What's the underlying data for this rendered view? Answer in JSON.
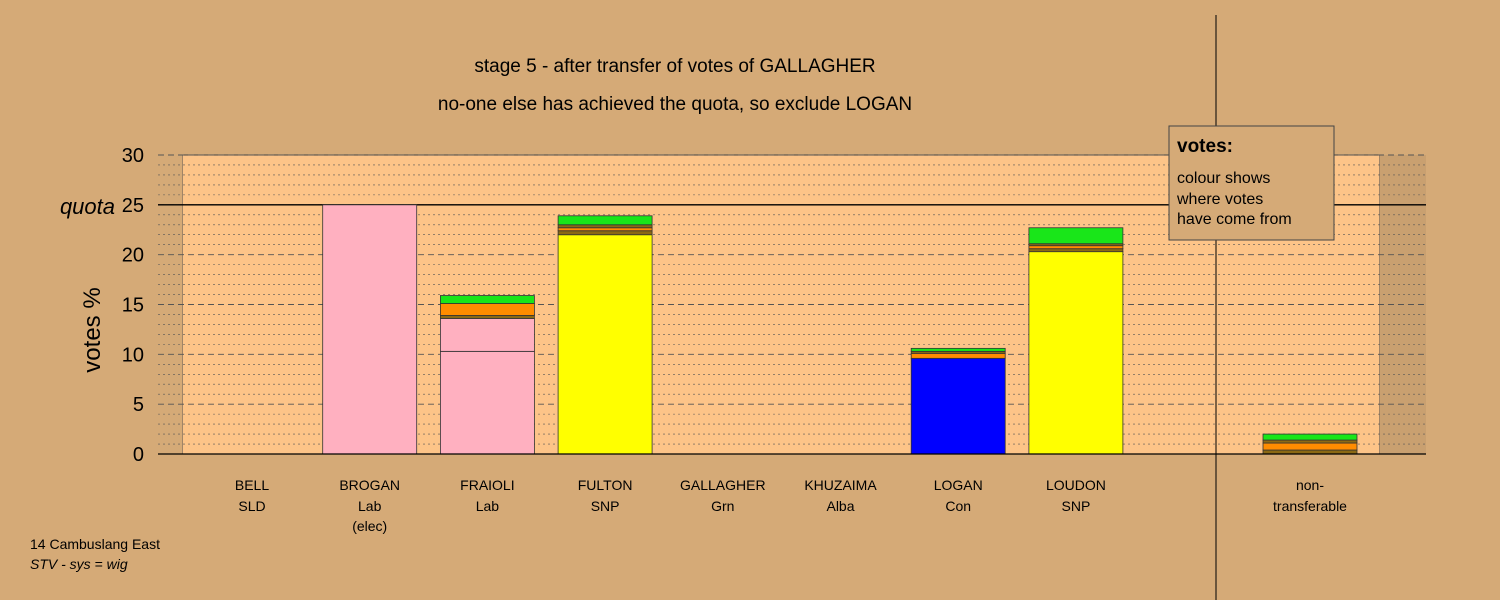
{
  "chart_data": {
    "type": "bar",
    "stacked": true,
    "title": "stage 5 - after transfer of votes of GALLAGHER",
    "subtitle": "no-one else has achieved the quota, so exclude LOGAN",
    "ylabel": "votes %",
    "ylim": [
      0,
      30
    ],
    "yticks": [
      0,
      5,
      10,
      15,
      20,
      25,
      30
    ],
    "quota": 25,
    "quota_label": "quota",
    "grid": true,
    "legend_position": "top-right",
    "legend": {
      "title": "votes:",
      "lines": [
        "colour shows",
        "where votes",
        "have come from"
      ]
    },
    "colors": {
      "background": "#d5aa77",
      "plot_area": "#fdc488",
      "Lab": "#ffb0c0",
      "SNP": "#ffff00",
      "Con": "#0000ff",
      "Grn": "#19e619",
      "SLD": "#ff8c00",
      "Alba": "#8b6914"
    },
    "candidates": [
      {
        "name": "BELL",
        "party": "SLD",
        "note": "",
        "segments": []
      },
      {
        "name": "BROGAN",
        "party": "Lab",
        "note": "(elec)",
        "segments": [
          {
            "from": "Lab",
            "value": 25.0
          }
        ]
      },
      {
        "name": "FRAIOLI",
        "party": "Lab",
        "note": "",
        "segments": [
          {
            "from": "Lab",
            "value": 10.3
          },
          {
            "from": "Lab",
            "value": 3.3
          },
          {
            "from": "Alba",
            "value": 0.3
          },
          {
            "from": "SLD",
            "value": 1.2
          },
          {
            "from": "Grn",
            "value": 0.8
          }
        ]
      },
      {
        "name": "FULTON",
        "party": "SNP",
        "note": "",
        "segments": [
          {
            "from": "SNP",
            "value": 22.0
          },
          {
            "from": "Alba",
            "value": 0.4
          },
          {
            "from": "SLD",
            "value": 0.3
          },
          {
            "from": "Alba",
            "value": 0.3
          },
          {
            "from": "Grn",
            "value": 0.9
          }
        ]
      },
      {
        "name": "GALLAGHER",
        "party": "Grn",
        "note": "",
        "segments": []
      },
      {
        "name": "KHUZAIMA",
        "party": "Alba",
        "note": "",
        "segments": []
      },
      {
        "name": "LOGAN",
        "party": "Con",
        "note": "",
        "segments": [
          {
            "from": "Con",
            "value": 9.6
          },
          {
            "from": "SLD",
            "value": 0.5
          },
          {
            "from": "Alba",
            "value": 0.2
          },
          {
            "from": "Grn",
            "value": 0.3
          }
        ]
      },
      {
        "name": "LOUDON",
        "party": "SNP",
        "note": "",
        "segments": [
          {
            "from": "SNP",
            "value": 20.3
          },
          {
            "from": "Alba",
            "value": 0.3
          },
          {
            "from": "SLD",
            "value": 0.3
          },
          {
            "from": "Alba",
            "value": 0.2
          },
          {
            "from": "Grn",
            "value": 1.6
          }
        ]
      }
    ],
    "non_transferable": {
      "label_line1": "non-",
      "label_line2": "transferable",
      "segments": [
        {
          "from": "Alba",
          "value": 0.4
        },
        {
          "from": "SLD",
          "value": 0.7
        },
        {
          "from": "Alba",
          "value": 0.3
        },
        {
          "from": "Grn",
          "value": 0.6
        }
      ]
    }
  },
  "footer": {
    "ward": "14 Cambuslang East",
    "system": "STV - sys = wig"
  }
}
